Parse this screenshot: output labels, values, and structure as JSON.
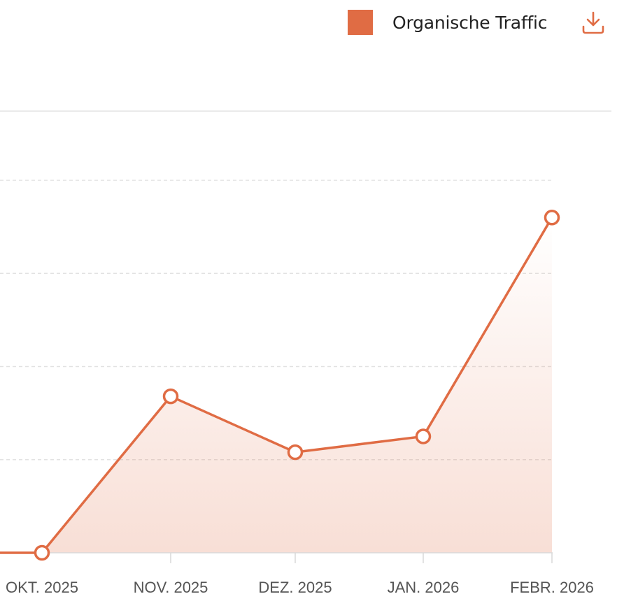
{
  "legend": {
    "label": "Organische Traffic"
  },
  "toolbar": {
    "download_icon": "download-icon"
  },
  "colors": {
    "accent": "#e06c44",
    "grid": "#e2e2e2",
    "axis": "#d9d9d9",
    "tick_text": "#555555"
  },
  "chart_data": {
    "type": "area",
    "title": "",
    "xlabel": "",
    "ylabel": "",
    "categories": [
      "OKT. 2025",
      "NOV. 2025",
      "DEZ. 2025",
      "JAN. 2026",
      "FEBR. 2026"
    ],
    "series": [
      {
        "name": "Organische Traffic",
        "values": [
          0,
          1.68,
          1.08,
          1.25,
          3.6
        ]
      }
    ],
    "ylim": [
      0,
      4
    ],
    "grid": true,
    "legend_position": "top-right"
  }
}
